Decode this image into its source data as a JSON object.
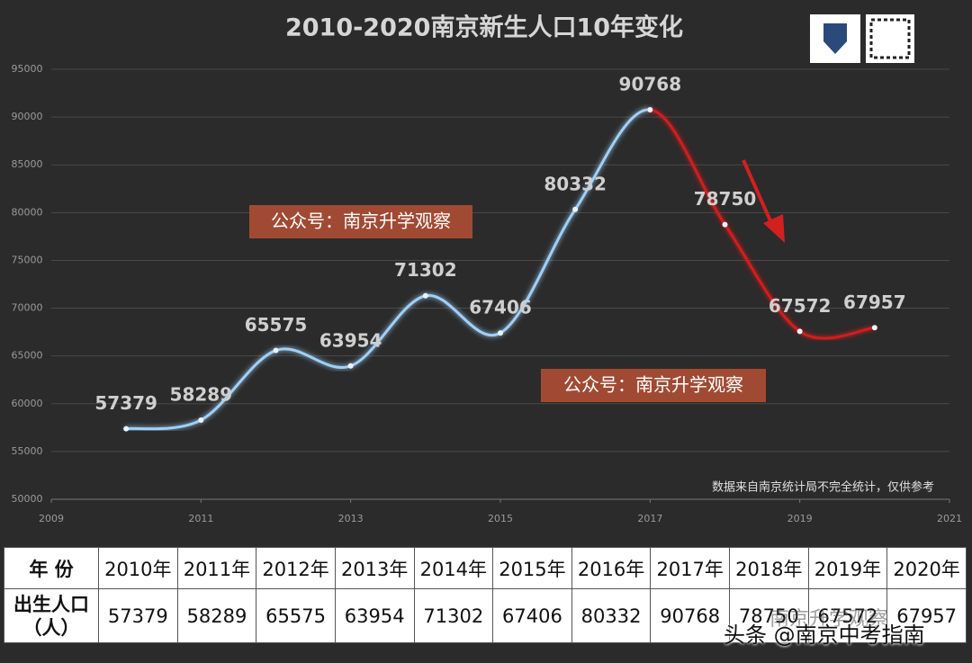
{
  "chart_data": {
    "type": "line",
    "title": "2010-2020南京新生人口10年变化",
    "x": [
      2010,
      2011,
      2012,
      2013,
      2014,
      2015,
      2016,
      2017,
      2018,
      2019,
      2020
    ],
    "series": [
      {
        "values": [
          57379,
          58289,
          65575,
          63954,
          71302,
          67406,
          80332,
          90768,
          78750,
          67572,
          67957
        ],
        "point_colors": [
          "#9fd0f7",
          "#9fd0f7",
          "#9fd0f7",
          "#9fd0f7",
          "#9fd0f7",
          "#9fd0f7",
          "#9fd0f7",
          "#d41f1f",
          "#d41f1f",
          "#d41f1f",
          "#d41f1f"
        ]
      }
    ],
    "xlim": [
      2009,
      2021
    ],
    "xticks": [
      2009,
      2011,
      2013,
      2015,
      2017,
      2019,
      2021
    ],
    "ylim": [
      50000,
      95000
    ],
    "yticks": [
      50000,
      55000,
      60000,
      65000,
      70000,
      75000,
      80000,
      85000,
      90000,
      95000
    ],
    "grid": true,
    "data_labels": true,
    "annotations": [
      "公众号：南京升学观察",
      "公众号：南京升学观察",
      "数据来自南京统计局不完全统计，仅供参考"
    ]
  },
  "table": {
    "header": [
      "年 份",
      "2010年",
      "2011年",
      "2012年",
      "2013年",
      "2014年",
      "2015年",
      "2016年",
      "2017年",
      "2018年",
      "2019年",
      "2020年"
    ],
    "rows": [
      {
        "label": [
          "出生人口",
          "（人）"
        ],
        "cells": [
          57379,
          58289,
          65575,
          63954,
          71302,
          67406,
          80332,
          90768,
          78750,
          67572,
          67957
        ]
      }
    ]
  },
  "table_watermark": "南京升学观察",
  "watermark": "头条 @南京中考指南"
}
